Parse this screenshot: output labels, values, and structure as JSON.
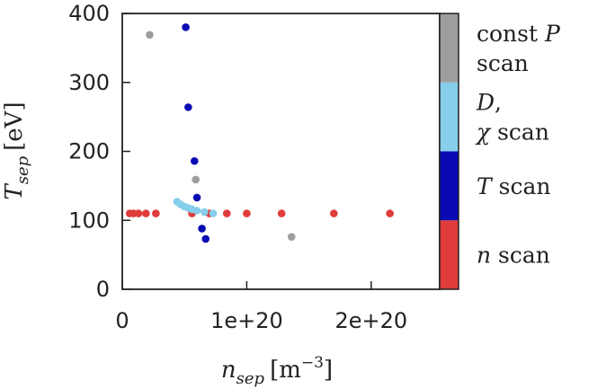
{
  "chart_data": {
    "type": "scatter",
    "xlabel": {
      "main": "n",
      "sub": "sep",
      "unit": "[m",
      "exp": "−3",
      "close": "]"
    },
    "ylabel": {
      "main": "T",
      "sub": "sep",
      "unit": "[eV]"
    },
    "xlim": [
      0,
      2.55e+20
    ],
    "ylim": [
      0,
      400
    ],
    "xticks": [
      {
        "value": 0,
        "label": "0"
      },
      {
        "value": 1e+20,
        "label": "1e+20"
      },
      {
        "value": 2e+20,
        "label": "2e+20"
      }
    ],
    "yticks": [
      {
        "value": 0,
        "label": "0"
      },
      {
        "value": 100,
        "label": "100"
      },
      {
        "value": 200,
        "label": "200"
      },
      {
        "value": 300,
        "label": "300"
      },
      {
        "value": 400,
        "label": "400"
      }
    ],
    "grid": false,
    "colorbar": [
      {
        "color": "#e03c3c",
        "lines": [
          {
            "italic": "n",
            "text": " scan"
          }
        ]
      },
      {
        "color": "#0a0ab4",
        "lines": [
          {
            "italic": "T",
            "text": " scan"
          }
        ]
      },
      {
        "color": "#87ceeb",
        "lines": [
          {
            "italic": "D",
            "text": ", "
          },
          {
            "italic": "χ",
            "text": " scan"
          }
        ]
      },
      {
        "color": "#9e9e9e",
        "lines": [
          {
            "text": "const ",
            "italic_after": "P"
          },
          {
            "text": "scan"
          }
        ]
      }
    ],
    "series": [
      {
        "name": "n scan",
        "color": "#e03c3c",
        "points": [
          [
            6e+18,
            110
          ],
          [
            9e+18,
            110
          ],
          [
            1.3e+19,
            110
          ],
          [
            1.9e+19,
            110
          ],
          [
            2.7e+19,
            110
          ],
          [
            5.6e+19,
            110
          ],
          [
            7e+19,
            110
          ],
          [
            8.4e+19,
            110
          ],
          [
            1e+20,
            110
          ],
          [
            1.28e+20,
            110
          ],
          [
            1.7e+20,
            110
          ],
          [
            2.15e+20,
            110
          ]
        ]
      },
      {
        "name": "T scan",
        "color": "#0a0ab4",
        "points": [
          [
            5.1e+19,
            380
          ],
          [
            5.3e+19,
            264
          ],
          [
            5.8e+19,
            186
          ],
          [
            6e+19,
            133
          ],
          [
            6.4e+19,
            88
          ],
          [
            6.7e+19,
            73
          ]
        ]
      },
      {
        "name": "D, χ scan",
        "color": "#87ceeb",
        "points": [
          [
            4.4e+19,
            127
          ],
          [
            4.7e+19,
            123
          ],
          [
            5e+19,
            120
          ],
          [
            5.3e+19,
            118
          ],
          [
            5.6e+19,
            116
          ],
          [
            6e+19,
            114
          ],
          [
            6.6e+19,
            112
          ],
          [
            7.3e+19,
            110
          ]
        ]
      },
      {
        "name": "const P scan",
        "color": "#9e9e9e",
        "points": [
          [
            2.2e+19,
            369
          ],
          [
            5.9e+19,
            159
          ],
          [
            1.36e+20,
            76
          ]
        ]
      }
    ]
  }
}
